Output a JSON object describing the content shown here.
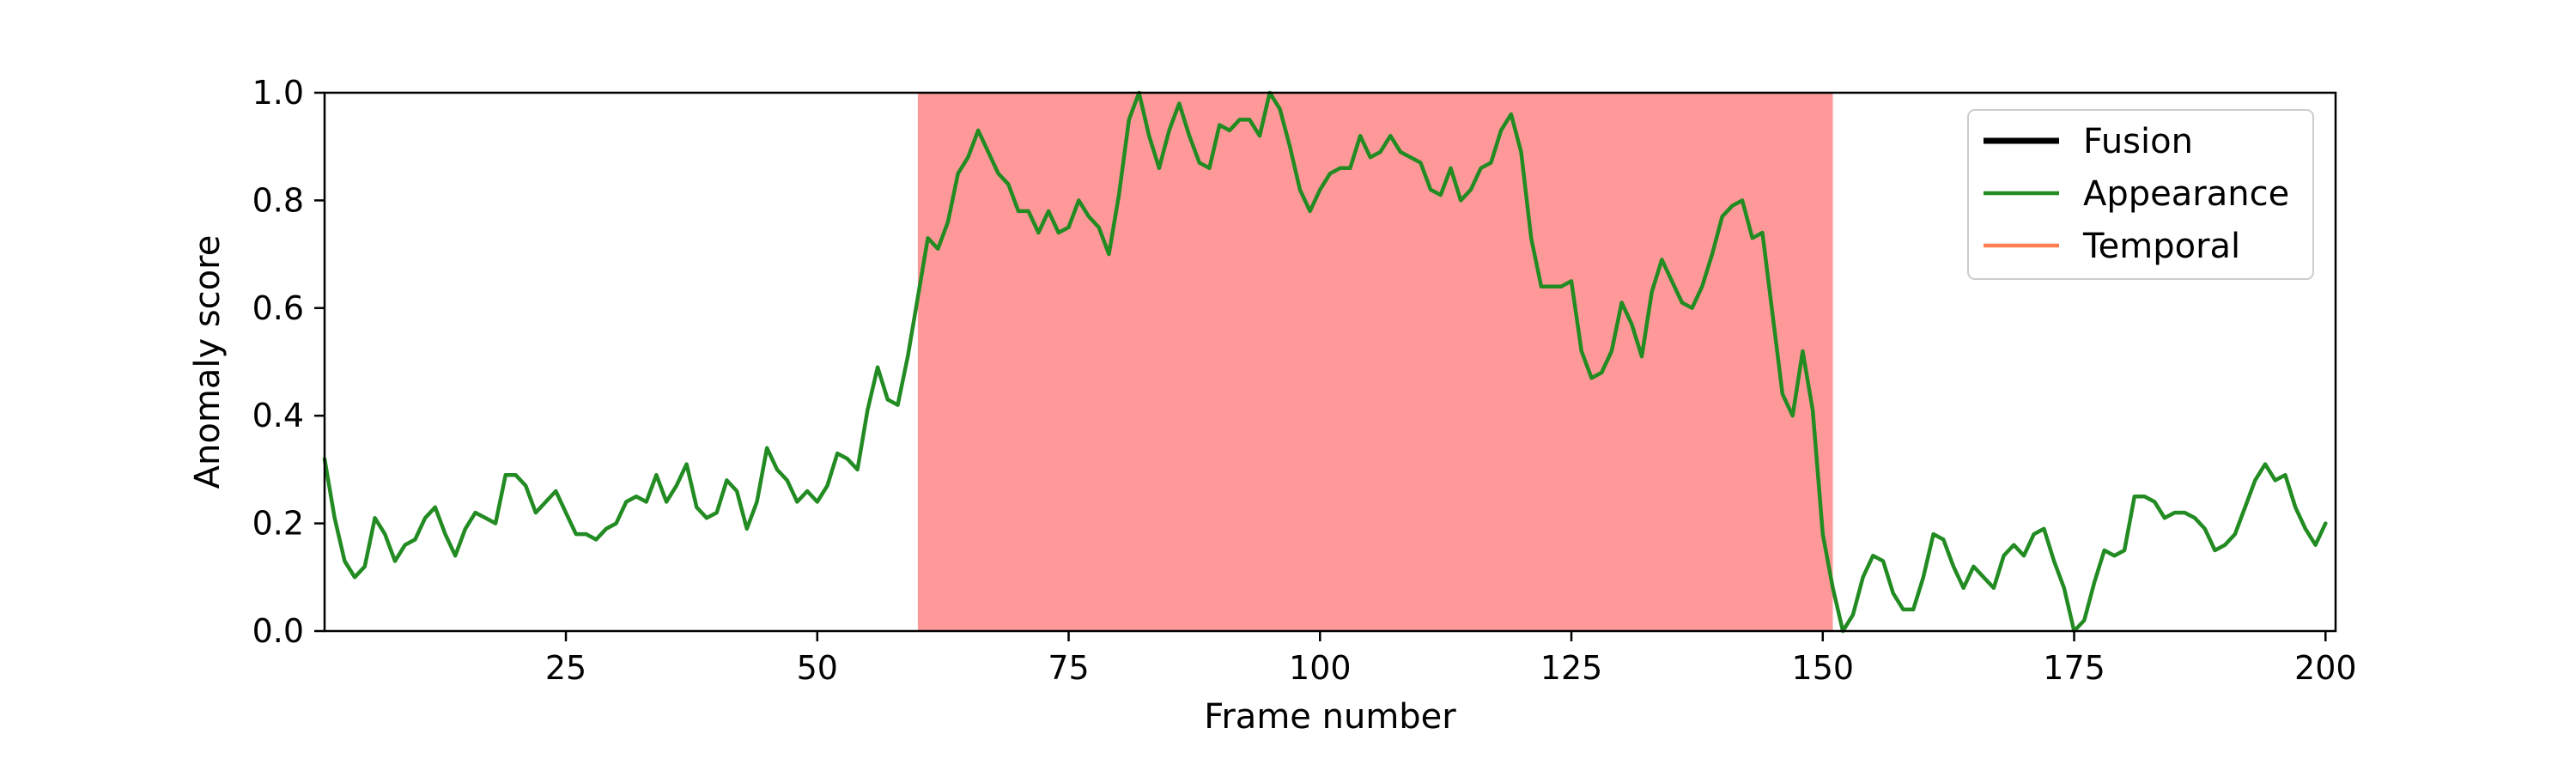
{
  "chart_data": {
    "type": "line",
    "title": "",
    "xlabel": "Frame number",
    "ylabel": "Anomaly score",
    "xlim": [
      1,
      201
    ],
    "ylim": [
      0,
      1.0
    ],
    "xticks": [
      25,
      50,
      75,
      100,
      125,
      150,
      175,
      200
    ],
    "yticks": [
      0.0,
      0.2,
      0.4,
      0.6,
      0.8,
      1.0
    ],
    "ytick_labels": [
      "0.0",
      "0.2",
      "0.4",
      "0.6",
      "0.8",
      "1.0"
    ],
    "grid": false,
    "legend_position": "top-right",
    "shaded_regions": [
      {
        "x_start": 60,
        "x_end": 151,
        "color": "#ff9999"
      }
    ],
    "series": [
      {
        "name": "Fusion",
        "color": "#000000",
        "values": []
      },
      {
        "name": "Appearance",
        "color": "#228b22",
        "x_start": 1,
        "values": [
          0.32,
          0.21,
          0.13,
          0.1,
          0.12,
          0.21,
          0.18,
          0.13,
          0.16,
          0.17,
          0.21,
          0.23,
          0.18,
          0.14,
          0.19,
          0.22,
          0.21,
          0.2,
          0.29,
          0.29,
          0.27,
          0.22,
          0.24,
          0.26,
          0.22,
          0.18,
          0.18,
          0.17,
          0.19,
          0.2,
          0.24,
          0.25,
          0.24,
          0.29,
          0.24,
          0.27,
          0.31,
          0.23,
          0.21,
          0.22,
          0.28,
          0.26,
          0.19,
          0.24,
          0.34,
          0.3,
          0.28,
          0.24,
          0.26,
          0.24,
          0.27,
          0.33,
          0.32,
          0.3,
          0.41,
          0.49,
          0.43,
          0.42,
          0.51,
          0.62,
          0.73,
          0.71,
          0.76,
          0.85,
          0.88,
          0.93,
          0.89,
          0.85,
          0.83,
          0.78,
          0.78,
          0.74,
          0.78,
          0.74,
          0.75,
          0.8,
          0.77,
          0.75,
          0.7,
          0.81,
          0.95,
          1.0,
          0.92,
          0.86,
          0.93,
          0.98,
          0.92,
          0.87,
          0.86,
          0.94,
          0.93,
          0.95,
          0.95,
          0.92,
          1.0,
          0.97,
          0.9,
          0.82,
          0.78,
          0.82,
          0.85,
          0.86,
          0.86,
          0.92,
          0.88,
          0.89,
          0.92,
          0.89,
          0.88,
          0.87,
          0.82,
          0.81,
          0.86,
          0.8,
          0.82,
          0.86,
          0.87,
          0.93,
          0.96,
          0.89,
          0.73,
          0.64,
          0.64,
          0.64,
          0.65,
          0.52,
          0.47,
          0.48,
          0.52,
          0.61,
          0.57,
          0.51,
          0.63,
          0.69,
          0.65,
          0.61,
          0.6,
          0.64,
          0.7,
          0.77,
          0.79,
          0.8,
          0.73,
          0.74,
          0.59,
          0.44,
          0.4,
          0.52,
          0.41,
          0.18,
          0.08,
          0.0,
          0.03,
          0.1,
          0.14,
          0.13,
          0.07,
          0.04,
          0.04,
          0.1,
          0.18,
          0.17,
          0.12,
          0.08,
          0.12,
          0.1,
          0.08,
          0.14,
          0.16,
          0.14,
          0.18,
          0.19,
          0.13,
          0.08,
          0.0,
          0.02,
          0.09,
          0.15,
          0.14,
          0.15,
          0.25,
          0.25,
          0.24,
          0.21,
          0.22,
          0.22,
          0.21,
          0.19,
          0.15,
          0.16,
          0.18,
          0.23,
          0.28,
          0.31,
          0.28,
          0.29,
          0.23,
          0.19,
          0.16,
          0.2
        ]
      },
      {
        "name": "Temporal",
        "color": "#ff7f50",
        "values": []
      }
    ]
  }
}
